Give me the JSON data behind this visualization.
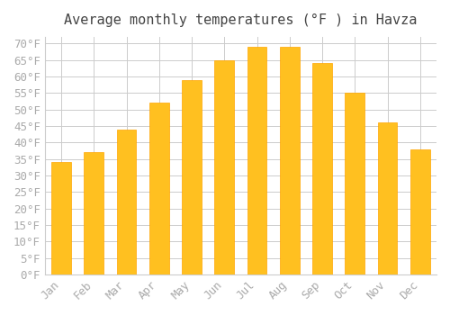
{
  "title": "Average monthly temperatures (°F ) in Havza",
  "months": [
    "Jan",
    "Feb",
    "Mar",
    "Apr",
    "May",
    "Jun",
    "Jul",
    "Aug",
    "Sep",
    "Oct",
    "Nov",
    "Dec"
  ],
  "values": [
    34,
    37,
    44,
    52,
    59,
    65,
    69,
    69,
    64,
    55,
    46,
    38
  ],
  "bar_color_face": "#FFC020",
  "bar_color_edge": "#FFA500",
  "background_color": "#FFFFFF",
  "grid_color": "#CCCCCC",
  "ylim": [
    0,
    72
  ],
  "yticks": [
    0,
    5,
    10,
    15,
    20,
    25,
    30,
    35,
    40,
    45,
    50,
    55,
    60,
    65,
    70
  ],
  "ytick_labels": [
    "0°F",
    "5°F",
    "10°F",
    "15°F",
    "20°F",
    "25°F",
    "30°F",
    "35°F",
    "40°F",
    "45°F",
    "50°F",
    "55°F",
    "60°F",
    "65°F",
    "70°F"
  ],
  "title_fontsize": 11,
  "tick_fontsize": 9,
  "font_color": "#AAAAAA"
}
